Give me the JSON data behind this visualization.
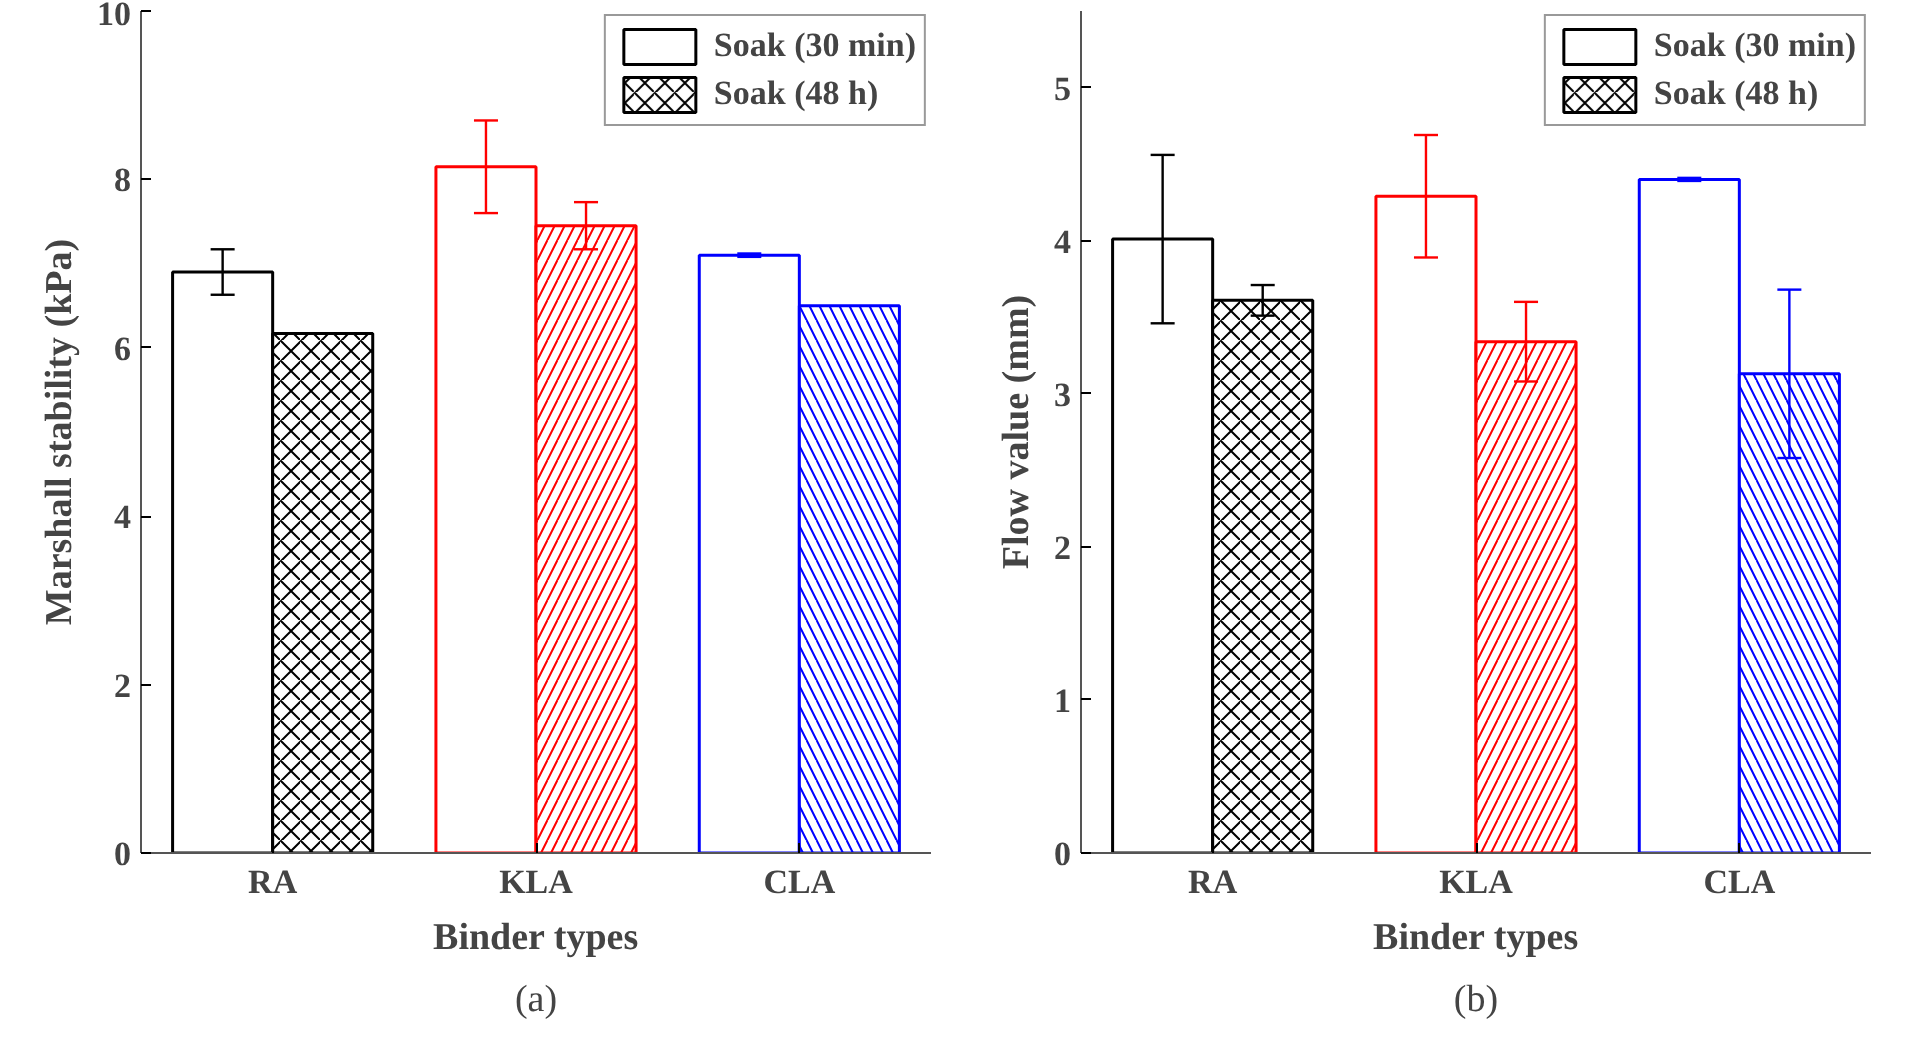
{
  "chart_data": [
    {
      "type": "bar",
      "xlabel": "Binder types",
      "ylabel": "Marshall stability (kPa)",
      "categories": [
        "RA",
        "KLA",
        "CLA"
      ],
      "ylim": [
        0,
        10
      ],
      "yticks": [
        0,
        2,
        4,
        6,
        8,
        10
      ],
      "legend": "top right",
      "annotations": [
        "(a)"
      ],
      "series": [
        {
          "name": "Soak (30 min)",
          "colors": [
            "#000000",
            "#ff0000",
            "#0000ff"
          ],
          "values": [
            6.9,
            8.15,
            7.1
          ],
          "errors": [
            0.27,
            0.55,
            0.02
          ]
        },
        {
          "name": "Soak (48 h)",
          "colors": [
            "#000000",
            "#ff0000",
            "#0000ff"
          ],
          "values": [
            6.17,
            7.45,
            6.5
          ],
          "errors": [
            null,
            0.28,
            null
          ]
        }
      ]
    },
    {
      "type": "bar",
      "xlabel": "Binder types",
      "ylabel": "Flow value (mm)",
      "categories": [
        "RA",
        "KLA",
        "CLA"
      ],
      "ylim": [
        0,
        5.5
      ],
      "yticks": [
        0,
        1,
        2,
        3,
        4,
        5
      ],
      "legend": "top right",
      "annotations": [
        "(b)"
      ],
      "series": [
        {
          "name": "Soak (30 min)",
          "colors": [
            "#000000",
            "#ff0000",
            "#0000ff"
          ],
          "values": [
            4.01,
            4.29,
            4.4
          ],
          "errors": [
            0.55,
            0.4,
            0.01
          ]
        },
        {
          "name": "Soak (48 h)",
          "colors": [
            "#000000",
            "#ff0000",
            "#0000ff"
          ],
          "values": [
            3.61,
            3.34,
            3.13
          ],
          "errors": [
            0.1,
            0.26,
            0.55
          ]
        }
      ]
    }
  ]
}
